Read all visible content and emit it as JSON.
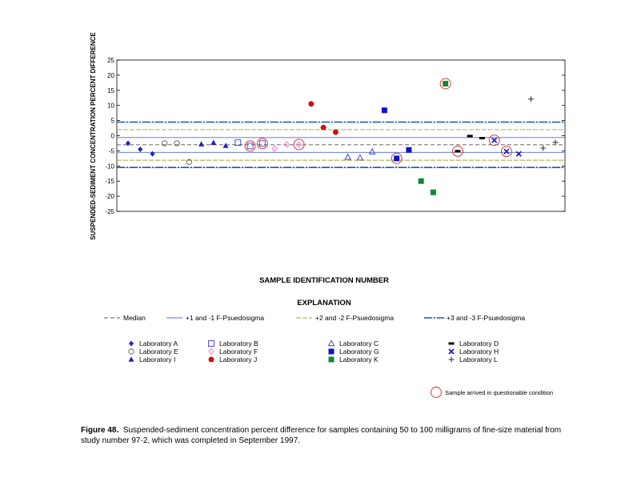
{
  "chart_data": {
    "type": "scatter",
    "title": "",
    "xlabel": "SAMPLE IDENTIFICATION NUMBER",
    "ylabel": "SUSPENDED-SEDIMENT CONCENTRATION PERCENT DIFFERENCE",
    "ylim": [
      -25,
      25
    ],
    "yticks": [
      25,
      20,
      15,
      10,
      5,
      0,
      -5,
      -10,
      -15,
      -20,
      -25
    ],
    "grid": false,
    "reference_lines": {
      "median": -3.0,
      "sigma1": [
        -5.5,
        -0.6
      ],
      "sigma2": [
        -8.1,
        2.0
      ],
      "sigma3": [
        -10.5,
        4.5
      ]
    },
    "series": [
      {
        "name": "Laboratory A",
        "marker": "diamond",
        "color": "#1f1fcc",
        "points": [
          [
            1,
            -2.5
          ],
          [
            2,
            -4.5
          ],
          [
            3,
            -6.0
          ]
        ]
      },
      {
        "name": "Laboratory E",
        "marker": "circle-open",
        "color": "#444444",
        "points": [
          [
            4,
            -2.5
          ],
          [
            5,
            -2.5
          ],
          [
            6,
            -8.7
          ]
        ]
      },
      {
        "name": "Laboratory I",
        "marker": "triangle",
        "color": "#1f1fcc",
        "points": [
          [
            7,
            -2.8
          ],
          [
            8,
            -2.3
          ],
          [
            9,
            -3.3
          ]
        ]
      },
      {
        "name": "Laboratory B",
        "marker": "square-open",
        "color": "#1f1fcc",
        "points": [
          [
            10,
            -2.3
          ],
          [
            11,
            -3.4
          ],
          [
            12,
            -2.6
          ]
        ]
      },
      {
        "name": "Laboratory F",
        "marker": "diamond-open",
        "color": "#ff66cc",
        "points": [
          [
            13,
            -4.3
          ],
          [
            14,
            -2.9
          ],
          [
            15,
            -2.9
          ]
        ]
      },
      {
        "name": "Laboratory J",
        "marker": "circle",
        "color": "#cc1111",
        "points": [
          [
            16,
            10.5
          ],
          [
            17,
            2.7
          ],
          [
            18,
            1.2
          ]
        ]
      },
      {
        "name": "Laboratory C",
        "marker": "triangle-open",
        "color": "#1f1fcc",
        "points": [
          [
            19,
            -7.1
          ],
          [
            20,
            -7.3
          ],
          [
            21,
            -5.3
          ]
        ]
      },
      {
        "name": "Laboratory G",
        "marker": "square",
        "color": "#1111cc",
        "points": [
          [
            22,
            8.4
          ],
          [
            23,
            -7.5
          ],
          [
            24,
            -4.7
          ]
        ]
      },
      {
        "name": "Laboratory K",
        "marker": "square",
        "color": "#118833",
        "points": [
          [
            25,
            -15.0
          ],
          [
            26,
            -18.7
          ],
          [
            27,
            17.2
          ]
        ]
      },
      {
        "name": "Laboratory D",
        "marker": "dash",
        "color": "#000000",
        "points": [
          [
            28,
            -5.1
          ],
          [
            29,
            -0.1
          ],
          [
            30,
            -0.8
          ]
        ]
      },
      {
        "name": "Laboratory H",
        "marker": "x",
        "color": "#1111cc",
        "points": [
          [
            31,
            -1.5
          ],
          [
            32,
            -5.2
          ],
          [
            33,
            -6.0
          ]
        ]
      },
      {
        "name": "Laboratory L",
        "marker": "plus",
        "color": "#333333",
        "points": [
          [
            34,
            12.1
          ],
          [
            35,
            -4.1
          ],
          [
            36,
            -2.2
          ]
        ]
      }
    ],
    "questionable": [
      [
        11,
        -3.4
      ],
      [
        12,
        -2.6
      ],
      [
        15,
        -2.9
      ],
      [
        23,
        -7.5
      ],
      [
        27,
        17.2
      ],
      [
        28,
        -5.1
      ],
      [
        31,
        -1.5
      ],
      [
        32,
        -5.2
      ]
    ]
  },
  "explanation": {
    "heading": "EXPLANATION",
    "median_label": "Median",
    "sigma1_label": "+1 and -1 F-Psuedosigma",
    "sigma2_label": "+2 and -2 F-Psuedosigma",
    "sigma3_label": "+3 and -3 F-Psuedosigma",
    "questionable_label": "Sample arrived in questionable condition"
  },
  "caption": {
    "lead": "Figure 48.",
    "text": "Suspended-sediment concentration percent difference for samples containing 50 to 100 milligrams of fine-size material from study number 97-2, which was completed in September 1997."
  }
}
